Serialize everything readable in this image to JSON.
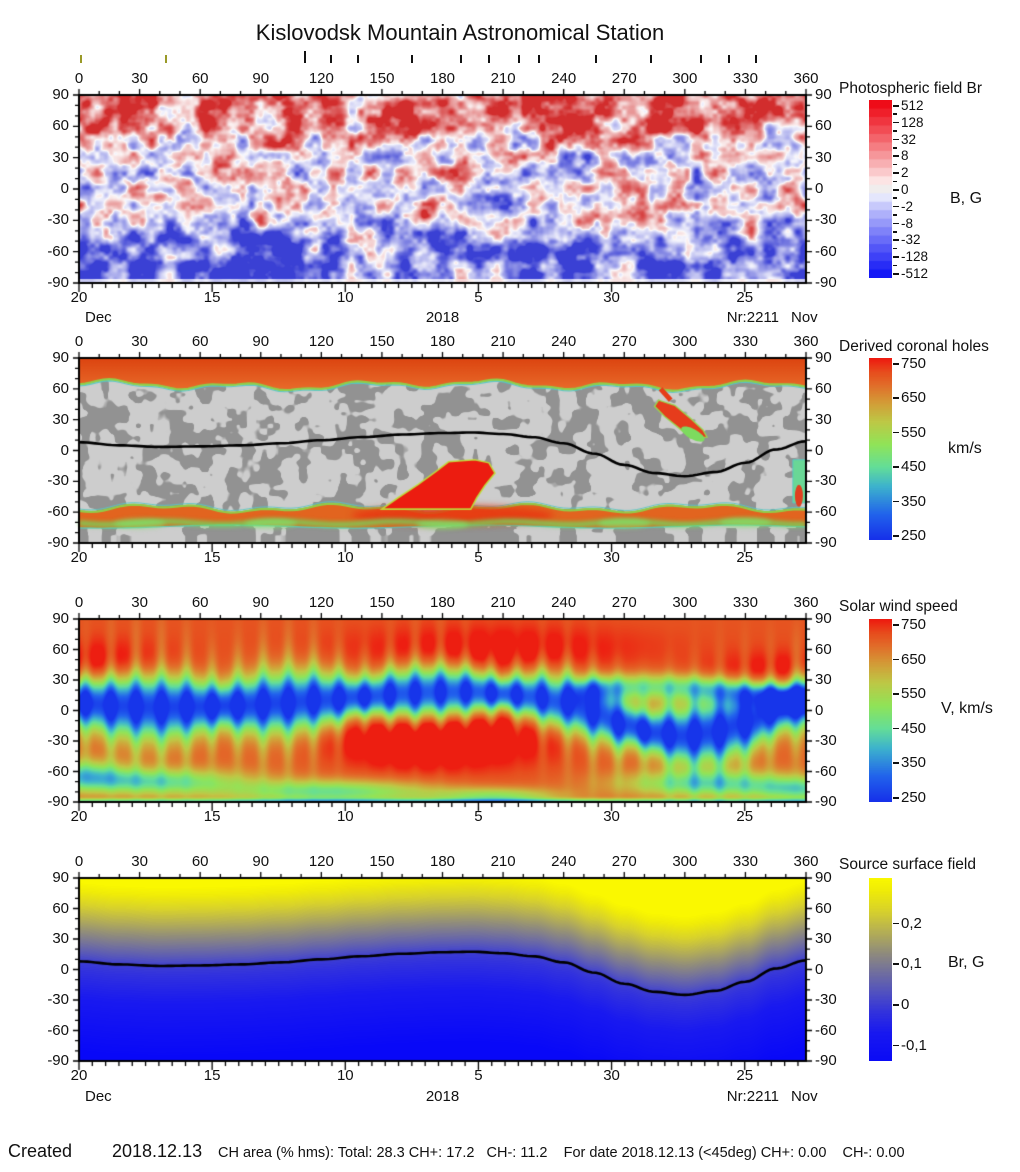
{
  "title": "Kislovodsk Mountain Astronomical Station",
  "axes": {
    "longitude_ticks": [
      0,
      30,
      60,
      90,
      120,
      150,
      180,
      210,
      240,
      270,
      300,
      330,
      360
    ],
    "latitude_ticks": [
      90,
      60,
      30,
      0,
      -30,
      -60,
      -90
    ],
    "date_ticks": [
      "20",
      "15",
      "10",
      "5",
      "30",
      "25"
    ],
    "month_left": "Dec",
    "year": "2018",
    "rotation_number": "Nr:2211",
    "month_right": "Nov",
    "observation_ticks": {
      "olive_lon": [
        1,
        43
      ],
      "black_lon": [
        112,
        125,
        138,
        165,
        189,
        203,
        218,
        228,
        256,
        283,
        308,
        322,
        335
      ],
      "tall_lon": 112
    }
  },
  "panels": [
    {
      "title": "Photospheric field Br",
      "unit": "B, G",
      "colorbar_labels": [
        "512",
        "128",
        "32",
        "8",
        "2",
        "0",
        "-2",
        "-8",
        "-32",
        "-128",
        "-512"
      ]
    },
    {
      "title": "Derived coronal holes",
      "unit": "km/s",
      "colorbar_labels": [
        "750",
        "650",
        "550",
        "450",
        "350",
        "250"
      ]
    },
    {
      "title": "Solar wind speed",
      "unit": "V, km/s",
      "colorbar_labels": [
        "750",
        "650",
        "550",
        "450",
        "350",
        "250"
      ]
    },
    {
      "title": "Source surface field",
      "unit": "Br, G",
      "colorbar_labels": [
        "0,2",
        "0,1",
        "0",
        "-0,1"
      ]
    }
  ],
  "footer": {
    "created_label": "Created",
    "created_date": "2018.12.13",
    "stats_text": "CH area (% hms): Total: 28.3 CH+: 17.2   CH-: 11.2    For date 2018.12.13 (<45deg) CH+: 0.00    CH-: 0.00",
    "stats": {
      "total_percent": 28.3,
      "ch_plus_percent": 17.2,
      "ch_minus_percent": 11.2,
      "for_date": "2018.12.13",
      "cone": "<45deg",
      "ch_plus_lt45": 0.0,
      "ch_minus_lt45": 0.0
    }
  },
  "chart_data": [
    {
      "type": "heatmap",
      "title": "Photospheric field Br",
      "x_range": [
        0,
        360
      ],
      "y_range": [
        -90,
        90
      ],
      "colorbar": {
        "ticks": [
          512,
          128,
          32,
          8,
          2,
          0,
          -2,
          -8,
          -32,
          -128,
          -512
        ],
        "unit": "B, G",
        "scale": "symmetric-log",
        "positive_color": "#ee1418",
        "zero_color": "#f0eeee",
        "negative_color": "#1418f2"
      },
      "description": "Mixed-polarity magnetogram mottling at low latitudes; predominantly positive (red) north polar cap above +55 deg; predominantly negative (blue) south polar region below -45 deg."
    },
    {
      "type": "heatmap",
      "title": "Derived coronal holes",
      "x_range": [
        0,
        360
      ],
      "y_range": [
        -90,
        90
      ],
      "colorbar": {
        "ticks": [
          750,
          650,
          550,
          450,
          350,
          250
        ],
        "unit": "km/s"
      },
      "features": [
        {
          "name": "north-polar-coronal-hole",
          "type": "band",
          "lat_min": 64,
          "lat_max": 90,
          "speed": 750
        },
        {
          "name": "south-coronal-hole-band",
          "type": "band",
          "lat_min": -74,
          "lat_max": -56,
          "speed": 700
        },
        {
          "name": "equatorial-tongue",
          "type": "polygon",
          "speed": 750,
          "points": [
            [
              150,
              -57
            ],
            [
              158,
              -46
            ],
            [
              168,
              -33
            ],
            [
              177,
              -20
            ],
            [
              183,
              -11
            ],
            [
              196,
              -9
            ],
            [
              203,
              -12
            ],
            [
              206,
              -22
            ],
            [
              201,
              -34
            ],
            [
              197,
              -46
            ],
            [
              194,
              -57
            ]
          ]
        },
        {
          "name": "northeast-lobe",
          "type": "polygon",
          "speed": 720,
          "points": [
            [
              287,
              49
            ],
            [
              295,
              44
            ],
            [
              303,
              31
            ],
            [
              309,
              20
            ],
            [
              311,
              13
            ],
            [
              303,
              12
            ],
            [
              297,
              22
            ],
            [
              290,
              33
            ],
            [
              285,
              43
            ]
          ]
        },
        {
          "name": "east-limb-strip",
          "type": "polygon",
          "speed": 480,
          "points": [
            [
              353.5,
              -9
            ],
            [
              359.8,
              -9
            ],
            [
              359.8,
              -51
            ],
            [
              353.5,
              -51
            ]
          ]
        }
      ],
      "neutral_line": {
        "points": [
          [
            0,
            8
          ],
          [
            20,
            5
          ],
          [
            40,
            3.5
          ],
          [
            60,
            4
          ],
          [
            80,
            5
          ],
          [
            100,
            7
          ],
          [
            120,
            10
          ],
          [
            140,
            13
          ],
          [
            160,
            15.5
          ],
          [
            180,
            17
          ],
          [
            195,
            17.5
          ],
          [
            210,
            16
          ],
          [
            225,
            13
          ],
          [
            240,
            7
          ],
          [
            255,
            -3
          ],
          [
            270,
            -14
          ],
          [
            285,
            -22
          ],
          [
            300,
            -25
          ],
          [
            315,
            -21
          ],
          [
            330,
            -12
          ],
          [
            345,
            1
          ],
          [
            360,
            9
          ]
        ]
      }
    },
    {
      "type": "heatmap",
      "title": "Solar wind speed",
      "x_range": [
        0,
        360
      ],
      "y_range": [
        -90,
        90
      ],
      "colorbar": {
        "ticks": [
          750,
          650,
          550,
          450,
          350,
          250
        ],
        "unit": "V, km/s"
      },
      "high_speed_regions": [
        {
          "lon": 8,
          "lat": 45,
          "rx": 30,
          "ry": 16,
          "amp": 95
        },
        {
          "lon": 205,
          "lat": 58,
          "rx": 50,
          "ry": 17,
          "amp": 85
        },
        {
          "lon": 350,
          "lat": 38,
          "rx": 28,
          "ry": 14,
          "amp": 90
        },
        {
          "lon": 283,
          "lat": 27,
          "rx": 17,
          "ry": 9,
          "amp": 55
        },
        {
          "lon": 192,
          "lat": -22,
          "rx": 40,
          "ry": 24,
          "amp": 130
        },
        {
          "lon": 162,
          "lat": -30,
          "rx": 25,
          "ry": 18,
          "amp": 90
        }
      ],
      "low_speed_patches": [
        {
          "lon": 35,
          "lat": -70,
          "rx": 32,
          "ry": 9,
          "amp": -240
        },
        {
          "lon": 125,
          "lat": -80,
          "rx": 35,
          "ry": 8,
          "amp": -230
        },
        {
          "lon": 207,
          "lat": -85,
          "rx": 22,
          "ry": 6,
          "amp": -190
        },
        {
          "lon": 312,
          "lat": -72,
          "rx": 30,
          "ry": 9,
          "amp": -240
        },
        {
          "lon": 2,
          "lat": -62,
          "rx": 14,
          "ry": 10,
          "amp": -190
        },
        {
          "lon": 358,
          "lat": -78,
          "rx": 16,
          "ry": 8,
          "amp": -200
        }
      ],
      "slow_wind_belt": "wavy low-speed (250-450 km/s) belt following the magnetic neutral line, near lat 0..+17 for lon 0-240, dipping to -25 near lon 270-300, with quasi-periodic blue fingers"
    },
    {
      "type": "heatmap",
      "title": "Source surface field",
      "x_range": [
        0,
        360
      ],
      "y_range": [
        -90,
        90
      ],
      "colorbar": {
        "ticks": [
          0.2,
          0.1,
          0,
          -0.1
        ],
        "unit": "Br, G",
        "vmax": 0.31,
        "vmin": -0.14,
        "top_color": "#f8f600",
        "bottom_color": "#0808f8"
      },
      "neutral_line": {
        "points": [
          [
            0,
            8
          ],
          [
            20,
            5
          ],
          [
            40,
            3.5
          ],
          [
            60,
            4
          ],
          [
            80,
            5
          ],
          [
            100,
            7
          ],
          [
            120,
            10
          ],
          [
            140,
            13
          ],
          [
            160,
            15.5
          ],
          [
            180,
            17
          ],
          [
            195,
            17.5
          ],
          [
            210,
            16
          ],
          [
            225,
            13
          ],
          [
            240,
            7
          ],
          [
            255,
            -3
          ],
          [
            270,
            -14
          ],
          [
            285,
            -22
          ],
          [
            300,
            -25
          ],
          [
            315,
            -21
          ],
          [
            330,
            -12
          ],
          [
            345,
            1
          ],
          [
            360,
            9
          ]
        ]
      },
      "description": "Smooth dipolar source-surface field: positive (yellow) northern hemisphere, negative (blue) southern hemisphere, black neutral line at the polarity inversion."
    }
  ]
}
